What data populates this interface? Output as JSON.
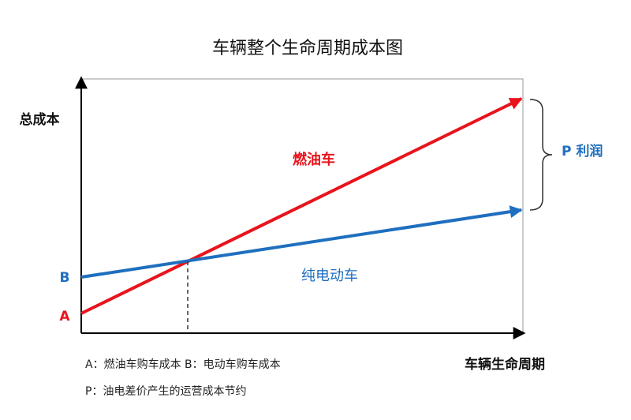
{
  "title": "车辆整个生命周期成本图",
  "axes": {
    "y_label": "总成本",
    "x_label": "车辆生命周期"
  },
  "lines": [
    {
      "label": "燃油车"
    },
    {
      "label": "纯电动车"
    }
  ],
  "points": {
    "a": "A",
    "b": "B"
  },
  "brace_label": "P 利润",
  "notes": [
    "A：燃油车购车成本   B：电动车购车成本",
    "P：油电差价产生的运营成本节约"
  ]
}
